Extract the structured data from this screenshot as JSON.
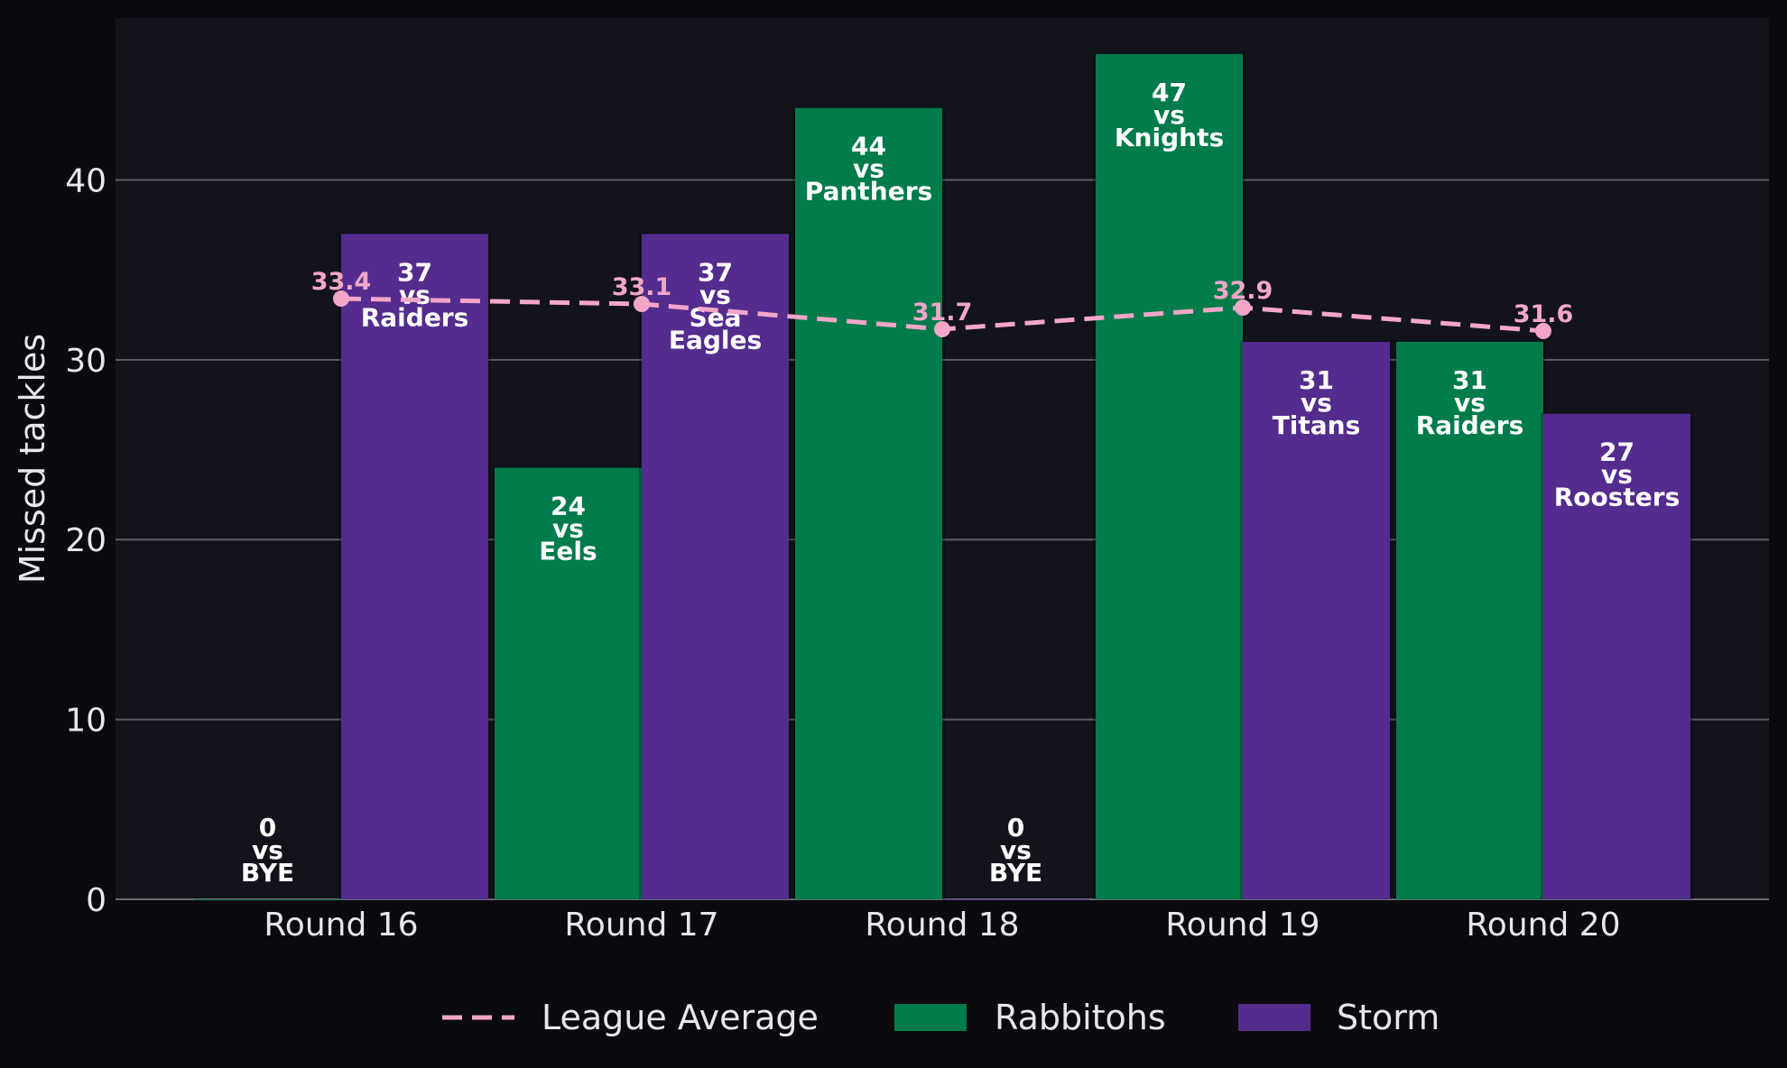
{
  "chart_data": {
    "type": "bar",
    "ylabel": "Missed tackles",
    "ylim": [
      0,
      49
    ],
    "yticks": [
      0,
      10,
      20,
      30,
      40
    ],
    "grid": true,
    "legend_position": "bottom-center",
    "categories": [
      "Round 16",
      "Round 17",
      "Round 18",
      "Round 19",
      "Round 20"
    ],
    "series": [
      {
        "name": "Rabbitohs",
        "color": "#007b4a",
        "values": [
          0,
          24,
          44,
          47,
          31
        ],
        "opponents": [
          "BYE",
          "Eels",
          "Panthers",
          "Knights",
          "Raiders"
        ]
      },
      {
        "name": "Storm",
        "color": "#532c8e",
        "values": [
          37,
          37,
          0,
          31,
          27
        ],
        "opponents": [
          "Raiders",
          "Sea Eagles",
          "BYE",
          "Titans",
          "Roosters"
        ]
      }
    ],
    "line": {
      "name": "League Average",
      "color": "#f4a6c9",
      "style": "dashed",
      "values": [
        33.4,
        33.1,
        31.7,
        32.9,
        31.6
      ]
    },
    "label_connector": "vs"
  }
}
